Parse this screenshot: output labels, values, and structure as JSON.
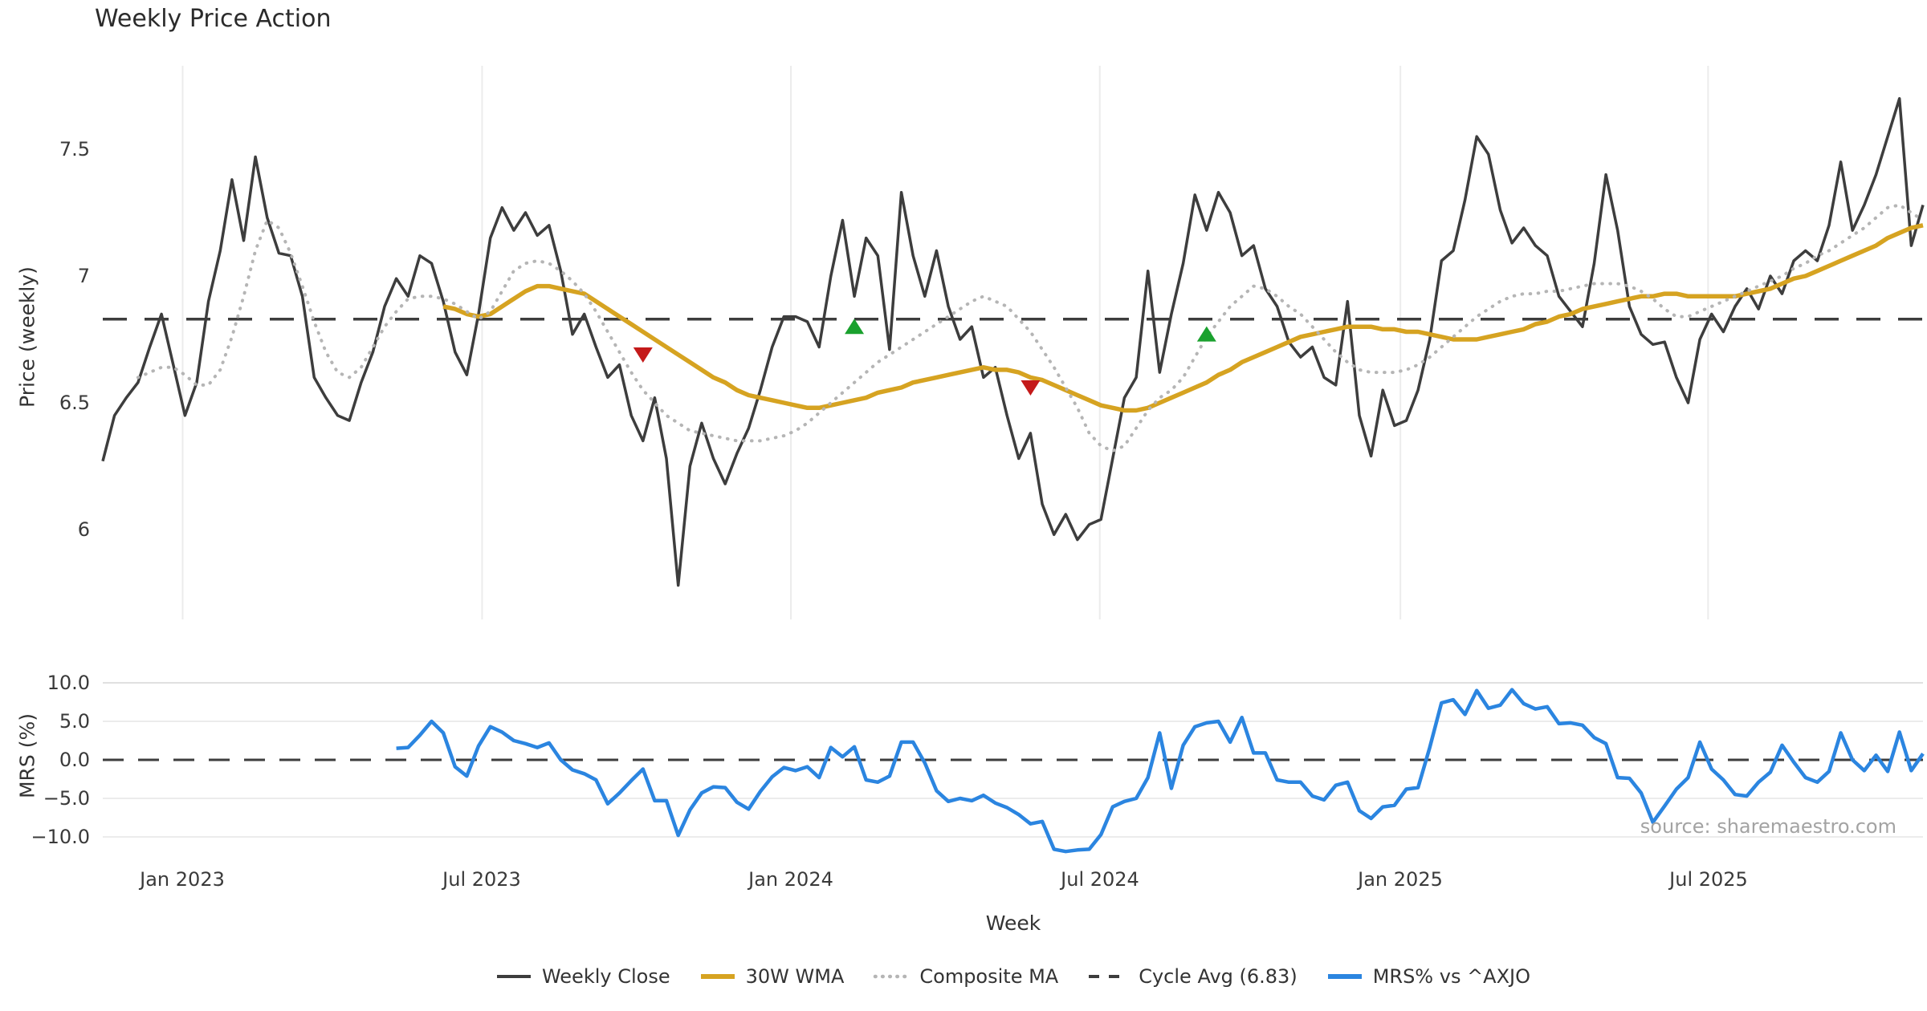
{
  "page": {
    "title": "Weekly Price Action"
  },
  "chart_data": {
    "type": "line",
    "title": "Weekly Price Action",
    "source_note": "source: sharemaestro.com",
    "x_axis": {
      "label": "Week",
      "tick_labels": [
        "Jan 2023",
        "Jul 2023",
        "Jan 2024",
        "Jul 2024",
        "Jan 2025",
        "Jul 2025"
      ],
      "tick_weeks": [
        6.8,
        32.3,
        58.6,
        84.9,
        110.5,
        136.7
      ],
      "total_weeks": 155
    },
    "price_panel": {
      "ylabel": "Price (weekly)",
      "tick_labels": [
        "7.5",
        "7",
        "6.5",
        "6"
      ],
      "tick_values": [
        7.5,
        7.0,
        6.5,
        6.0
      ],
      "ylim": [
        5.62,
        7.85
      ],
      "cycle_avg": 6.83
    },
    "mrs_panel": {
      "ylabel": "MRS (%)",
      "tick_labels": [
        "10.0",
        "5.0",
        "0.0",
        "−5.0",
        "−10.0"
      ],
      "tick_values": [
        10,
        5,
        0,
        -5,
        -10
      ],
      "ylim": [
        -13.2,
        11.5
      ]
    },
    "legend": {
      "items": [
        "Weekly Close",
        "30W WMA",
        "Composite MA",
        "Cycle Avg (6.83)",
        "MRS% vs ^AXJO"
      ]
    },
    "series": [
      {
        "name": "Weekly Close",
        "color": "#3d3d3d",
        "style": "solid",
        "panel": "price",
        "start_week": 0,
        "values": [
          6.27,
          6.45,
          6.52,
          6.58,
          6.72,
          6.85,
          6.65,
          6.45,
          6.58,
          6.9,
          7.1,
          7.38,
          7.14,
          7.47,
          7.23,
          7.09,
          7.08,
          6.92,
          6.6,
          6.52,
          6.45,
          6.43,
          6.58,
          6.7,
          6.88,
          6.99,
          6.92,
          7.08,
          7.05,
          6.9,
          6.7,
          6.61,
          6.85,
          7.15,
          7.27,
          7.18,
          7.25,
          7.16,
          7.2,
          7.02,
          6.77,
          6.85,
          6.72,
          6.6,
          6.65,
          6.45,
          6.35,
          6.52,
          6.28,
          5.78,
          6.25,
          6.42,
          6.28,
          6.18,
          6.3,
          6.4,
          6.55,
          6.72,
          6.84,
          6.84,
          6.82,
          6.72,
          7.0,
          7.22,
          6.92,
          7.15,
          7.08,
          6.71,
          7.33,
          7.08,
          6.92,
          7.1,
          6.88,
          6.75,
          6.8,
          6.6,
          6.64,
          6.45,
          6.28,
          6.38,
          6.1,
          5.98,
          6.06,
          5.96,
          6.02,
          6.04,
          6.28,
          6.52,
          6.6,
          7.02,
          6.62,
          6.85,
          7.05,
          7.32,
          7.18,
          7.33,
          7.25,
          7.08,
          7.12,
          6.95,
          6.88,
          6.74,
          6.68,
          6.72,
          6.6,
          6.57,
          6.9,
          6.45,
          6.29,
          6.55,
          6.41,
          6.43,
          6.55,
          6.75,
          7.06,
          7.1,
          7.3,
          7.55,
          7.48,
          7.26,
          7.13,
          7.19,
          7.12,
          7.08,
          6.92,
          6.86,
          6.8,
          7.05,
          7.4,
          7.18,
          6.88,
          6.77,
          6.73,
          6.74,
          6.6,
          6.5,
          6.75,
          6.85,
          6.78,
          6.88,
          6.95,
          6.87,
          7.0,
          6.93,
          7.06,
          7.1,
          7.06,
          7.2,
          7.45,
          7.18,
          7.28,
          7.4,
          7.55,
          7.7,
          7.12,
          7.28
        ]
      },
      {
        "name": "30W WMA",
        "color": "#d6a321",
        "style": "solid",
        "panel": "price",
        "start_week": 29,
        "values": [
          6.88,
          6.87,
          6.85,
          6.84,
          6.85,
          6.88,
          6.91,
          6.94,
          6.96,
          6.96,
          6.95,
          6.94,
          6.93,
          6.9,
          6.87,
          6.84,
          6.81,
          6.78,
          6.75,
          6.72,
          6.69,
          6.66,
          6.63,
          6.6,
          6.58,
          6.55,
          6.53,
          6.52,
          6.51,
          6.5,
          6.49,
          6.48,
          6.48,
          6.49,
          6.5,
          6.51,
          6.52,
          6.54,
          6.55,
          6.56,
          6.58,
          6.59,
          6.6,
          6.61,
          6.62,
          6.63,
          6.64,
          6.63,
          6.63,
          6.62,
          6.6,
          6.59,
          6.57,
          6.55,
          6.53,
          6.51,
          6.49,
          6.48,
          6.47,
          6.47,
          6.48,
          6.5,
          6.52,
          6.54,
          6.56,
          6.58,
          6.61,
          6.63,
          6.66,
          6.68,
          6.7,
          6.72,
          6.74,
          6.76,
          6.77,
          6.78,
          6.79,
          6.8,
          6.8,
          6.8,
          6.79,
          6.79,
          6.78,
          6.78,
          6.77,
          6.76,
          6.75,
          6.75,
          6.75,
          6.76,
          6.77,
          6.78,
          6.79,
          6.81,
          6.82,
          6.84,
          6.85,
          6.87,
          6.88,
          6.89,
          6.9,
          6.91,
          6.92,
          6.92,
          6.93,
          6.93,
          6.92,
          6.92,
          6.92,
          6.92,
          6.92,
          6.93,
          6.94,
          6.95,
          6.97,
          6.99,
          7.0,
          7.02,
          7.04,
          7.06,
          7.08,
          7.1,
          7.12,
          7.15,
          7.17,
          7.19,
          7.2
        ]
      },
      {
        "name": "Composite MA",
        "color": "#b5b5b5",
        "style": "dotted",
        "panel": "price",
        "start_week": 3,
        "values": [
          6.6,
          6.62,
          6.64,
          6.64,
          6.61,
          6.57,
          6.57,
          6.63,
          6.76,
          6.92,
          7.1,
          7.22,
          7.19,
          7.09,
          6.96,
          6.82,
          6.7,
          6.62,
          6.6,
          6.64,
          6.72,
          6.8,
          6.86,
          6.91,
          6.92,
          6.92,
          6.91,
          6.89,
          6.86,
          6.83,
          6.86,
          6.94,
          7.02,
          7.05,
          7.06,
          7.05,
          7.02,
          6.98,
          6.93,
          6.86,
          6.78,
          6.7,
          6.62,
          6.55,
          6.5,
          6.45,
          6.42,
          6.39,
          6.38,
          6.37,
          6.36,
          6.35,
          6.35,
          6.35,
          6.36,
          6.37,
          6.39,
          6.42,
          6.46,
          6.5,
          6.54,
          6.58,
          6.62,
          6.66,
          6.69,
          6.72,
          6.75,
          6.78,
          6.81,
          6.84,
          6.87,
          6.9,
          6.92,
          6.9,
          6.88,
          6.83,
          6.78,
          6.71,
          6.64,
          6.56,
          6.48,
          6.38,
          6.33,
          6.31,
          6.33,
          6.4,
          6.47,
          6.52,
          6.55,
          6.6,
          6.68,
          6.76,
          6.82,
          6.88,
          6.92,
          6.96,
          6.95,
          6.92,
          6.88,
          6.85,
          6.8,
          6.75,
          6.7,
          6.66,
          6.63,
          6.62,
          6.62,
          6.62,
          6.63,
          6.65,
          6.68,
          6.72,
          6.76,
          6.8,
          6.84,
          6.87,
          6.9,
          6.92,
          6.93,
          6.93,
          6.94,
          6.94,
          6.95,
          6.96,
          6.97,
          6.97,
          6.97,
          6.96,
          6.94,
          6.91,
          6.87,
          6.84,
          6.84,
          6.86,
          6.88,
          6.9,
          6.92,
          6.94,
          6.96,
          6.98,
          7.0,
          7.03,
          7.05,
          7.08,
          7.1,
          7.13,
          7.16,
          7.19,
          7.23,
          7.27,
          7.28,
          7.25,
          7.22
        ]
      },
      {
        "name": "Cycle Avg (6.83)",
        "color": "#3d3d3d",
        "style": "dashed",
        "panel": "price",
        "value": 6.83
      },
      {
        "name": "MRS% vs ^AXJO",
        "color": "#2b85e0",
        "style": "solid",
        "panel": "mrs",
        "start_week": 25,
        "values": [
          1.5,
          1.6,
          3.2,
          5.0,
          3.5,
          -0.9,
          -2.1,
          1.8,
          4.3,
          3.6,
          2.5,
          2.1,
          1.6,
          2.2,
          0.0,
          -1.3,
          -1.8,
          -2.6,
          -5.7,
          -4.3,
          -2.7,
          -1.2,
          -5.3,
          -5.3,
          -9.8,
          -6.5,
          -4.3,
          -3.5,
          -3.6,
          -5.5,
          -6.4,
          -4.1,
          -2.2,
          -1.0,
          -1.4,
          -0.9,
          -2.3,
          1.6,
          0.4,
          1.7,
          -2.6,
          -2.9,
          -2.1,
          2.3,
          2.3,
          -0.4,
          -4.0,
          -5.4,
          -5.0,
          -5.3,
          -4.6,
          -5.6,
          -6.2,
          -7.1,
          -8.3,
          -8.0,
          -11.6,
          -11.9,
          -11.7,
          -11.6,
          -9.7,
          -6.1,
          -5.4,
          -5.0,
          -2.3,
          3.5,
          -3.7,
          1.9,
          4.3,
          4.8,
          5.0,
          2.3,
          5.5,
          0.9,
          0.9,
          -2.6,
          -2.9,
          -2.9,
          -4.7,
          -5.2,
          -3.3,
          -2.9,
          -6.6,
          -7.6,
          -6.1,
          -5.9,
          -3.8,
          -3.6,
          1.6,
          7.4,
          7.8,
          5.9,
          9.0,
          6.7,
          7.1,
          9.1,
          7.3,
          6.6,
          6.9,
          4.7,
          4.8,
          4.5,
          2.9,
          2.1,
          -2.3,
          -2.4,
          -4.3,
          -8.1,
          -6.0,
          -3.8,
          -2.3,
          2.3,
          -1.2,
          -2.6,
          -4.5,
          -4.7,
          -2.9,
          -1.6,
          1.9,
          -0.3,
          -2.3,
          -2.9,
          -1.5,
          3.5,
          0.0,
          -1.4,
          0.6,
          -1.5,
          3.6,
          -1.4,
          0.8
        ]
      }
    ],
    "markers": {
      "sell": {
        "color": "#c41a1a",
        "points": [
          {
            "week": 46,
            "value": 6.69
          },
          {
            "week": 79,
            "value": 6.56
          }
        ]
      },
      "buy": {
        "color": "#1aa12e",
        "points": [
          {
            "week": 64,
            "value": 6.8
          },
          {
            "week": 94,
            "value": 6.77
          }
        ]
      }
    }
  }
}
